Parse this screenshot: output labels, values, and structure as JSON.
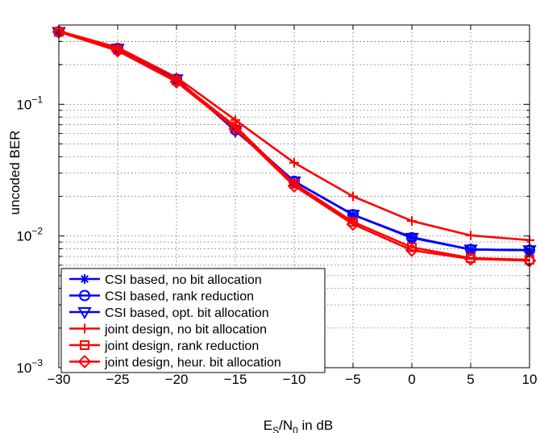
{
  "chart_data": {
    "type": "line",
    "xlabel": {
      "main": "E",
      "sub1": "S",
      "mid": "/N",
      "sub2": "0",
      "tail": " in dB"
    },
    "ylabel": "uncoded BER",
    "xlim": [
      -30,
      10
    ],
    "ylim": [
      0.001,
      0.4
    ],
    "yscale": "log",
    "grid": true,
    "legend_position": "bottom-left",
    "x_ticks": [
      -30,
      -25,
      -20,
      -15,
      -10,
      -5,
      0,
      5,
      10
    ],
    "x_tick_labels": [
      "−30",
      "−25",
      "−20",
      "−15",
      "−10",
      "−5",
      "0",
      "5",
      "10"
    ],
    "y_tick_labels": [
      {
        "value": 0.1,
        "base": "10",
        "exp": "−1"
      },
      {
        "value": 0.01,
        "base": "10",
        "exp": "−2"
      },
      {
        "value": 0.001,
        "base": "10",
        "exp": "−3"
      }
    ],
    "x": [
      -30,
      -25,
      -20,
      -15,
      -10,
      -5,
      0,
      5,
      10
    ],
    "series": [
      {
        "name": "CSI based, no bit allocation",
        "color": "#0000ff",
        "marker": "asterisk",
        "values": [
          0.355,
          0.265,
          0.155,
          0.065,
          0.026,
          0.0145,
          0.0098,
          0.0079,
          0.0078
        ]
      },
      {
        "name": "CSI based, rank reduction",
        "color": "#0000ff",
        "marker": "circle",
        "values": [
          0.355,
          0.265,
          0.155,
          0.064,
          0.026,
          0.0145,
          0.0097,
          0.0079,
          0.0078
        ]
      },
      {
        "name": "CSI based, opt. bit allocation",
        "color": "#0000ff",
        "marker": "triangle-down",
        "values": [
          0.355,
          0.265,
          0.155,
          0.063,
          0.026,
          0.0145,
          0.0097,
          0.0079,
          0.0078
        ]
      },
      {
        "name": "joint design, no bit allocation",
        "color": "#ff0000",
        "marker": "plus",
        "values": [
          0.36,
          0.27,
          0.16,
          0.076,
          0.036,
          0.02,
          0.013,
          0.0101,
          0.0093
        ]
      },
      {
        "name": "joint design, rank reduction",
        "color": "#ff0000",
        "marker": "square",
        "values": [
          0.355,
          0.26,
          0.152,
          0.068,
          0.025,
          0.0128,
          0.0082,
          0.0068,
          0.0066
        ]
      },
      {
        "name": "joint design, heur. bit allocation",
        "color": "#ff0000",
        "marker": "diamond",
        "values": [
          0.355,
          0.255,
          0.148,
          0.065,
          0.024,
          0.0123,
          0.0078,
          0.0067,
          0.0065
        ]
      }
    ]
  }
}
